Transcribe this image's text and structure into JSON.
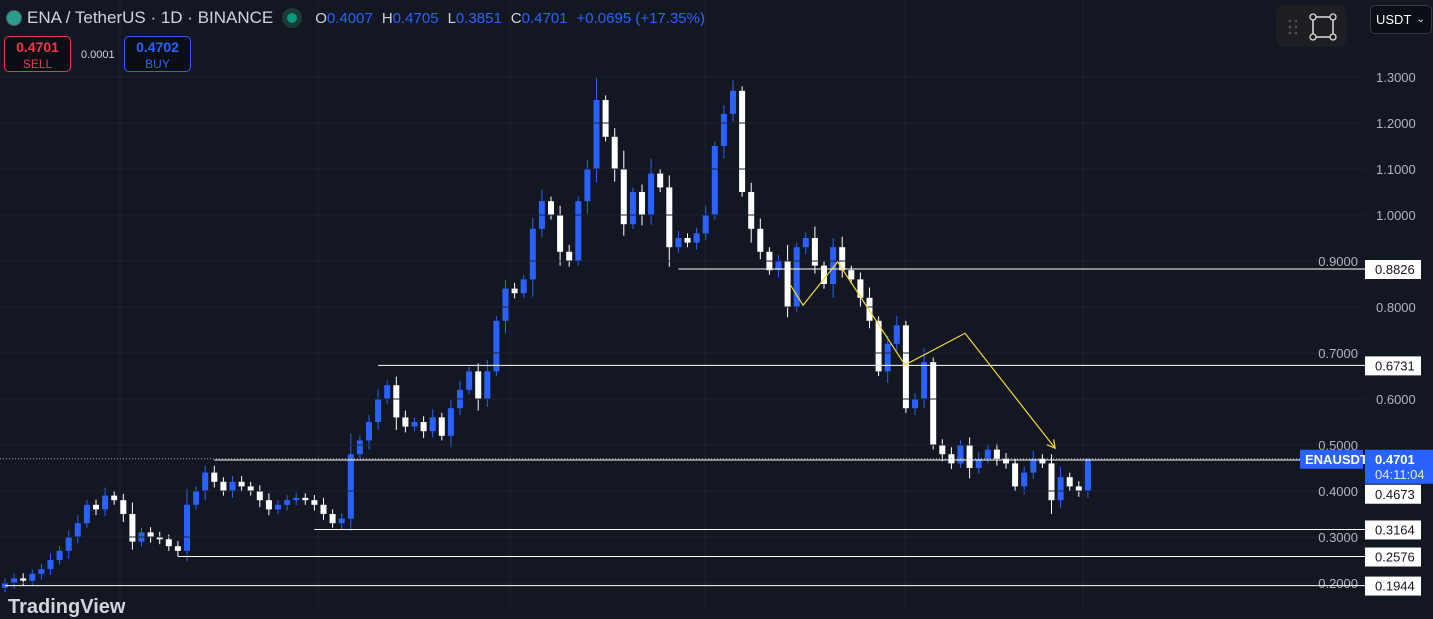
{
  "header": {
    "symbol": "ENA / TetherUS · 1D · BINANCE",
    "o_label": "O",
    "o": "0.4007",
    "h_label": "H",
    "h": "0.4705",
    "l_label": "L",
    "l": "0.3851",
    "c_label": "C",
    "c": "0.4701",
    "change": "+0.0695 (+17.35%)"
  },
  "trade": {
    "sell_price": "0.4701",
    "sell_label": "SELL",
    "spread": "0.0001",
    "buy_price": "0.4702",
    "buy_label": "BUY"
  },
  "currency": {
    "selected": "USDT"
  },
  "branding": "TradingView",
  "colors": {
    "up": "#2962ff",
    "down": "#ffffff",
    "drawing": "#f0d43a",
    "background": "#131722"
  },
  "chart_data": {
    "type": "candlestick",
    "ylim": [
      0.16,
      1.37
    ],
    "y_ticks": [
      "1.3000",
      "1.2000",
      "1.1000",
      "1.0000",
      "0.9000",
      "0.8000",
      "0.7000",
      "0.6000",
      "0.5000",
      "0.4000",
      "0.3000",
      "0.2000"
    ],
    "grid": true,
    "last_open": 0.4007,
    "last_high": 0.4705,
    "last_low": 0.3851,
    "closes": [
      0.2,
      0.21,
      0.205,
      0.22,
      0.23,
      0.25,
      0.27,
      0.3,
      0.33,
      0.37,
      0.36,
      0.39,
      0.38,
      0.35,
      0.29,
      0.31,
      0.3,
      0.295,
      0.28,
      0.27,
      0.37,
      0.4,
      0.44,
      0.42,
      0.4,
      0.42,
      0.41,
      0.4,
      0.38,
      0.36,
      0.37,
      0.38,
      0.385,
      0.38,
      0.37,
      0.35,
      0.33,
      0.34,
      0.48,
      0.51,
      0.55,
      0.6,
      0.63,
      0.56,
      0.54,
      0.55,
      0.53,
      0.56,
      0.52,
      0.58,
      0.62,
      0.66,
      0.6,
      0.66,
      0.77,
      0.84,
      0.83,
      0.86,
      0.97,
      1.03,
      1.0,
      0.92,
      0.9,
      1.03,
      1.1,
      1.25,
      1.17,
      1.1,
      0.98,
      1.05,
      1.0,
      1.09,
      1.06,
      0.93,
      0.95,
      0.94,
      0.96,
      1.0,
      1.15,
      1.22,
      1.27,
      1.05,
      0.97,
      0.92,
      0.88,
      0.9,
      0.8,
      0.93,
      0.95,
      0.89,
      0.85,
      0.93,
      0.88,
      0.86,
      0.82,
      0.77,
      0.66,
      0.72,
      0.76,
      0.58,
      0.6,
      0.68,
      0.5,
      0.48,
      0.46,
      0.5,
      0.45,
      0.47,
      0.49,
      0.47,
      0.46,
      0.41,
      0.44,
      0.47,
      0.46,
      0.38,
      0.43,
      0.41,
      0.4,
      0.4701
    ],
    "levels": [
      {
        "price": 0.8826,
        "label": "0.8826",
        "from_bar": 74
      },
      {
        "price": 0.6731,
        "label": "0.6731",
        "from_bar": 41
      },
      {
        "price": 0.4673,
        "label": "0.4673",
        "from_bar": 23
      },
      {
        "price": 0.3164,
        "label": "0.3164",
        "from_bar": 34
      },
      {
        "price": 0.2576,
        "label": "0.2576",
        "from_bar": 19
      },
      {
        "price": 0.1944,
        "label": "0.1944",
        "from_bar": 0
      }
    ],
    "last_price": {
      "symbol": "ENAUSDT",
      "price": "0.4701",
      "countdown": "04:11:04"
    },
    "path": [
      [
        86.3,
        0.848
      ],
      [
        87.7,
        0.804
      ],
      [
        91.5,
        0.898
      ],
      [
        98.9,
        0.674
      ],
      [
        105.5,
        0.743
      ],
      [
        115.4,
        0.493
      ]
    ]
  }
}
